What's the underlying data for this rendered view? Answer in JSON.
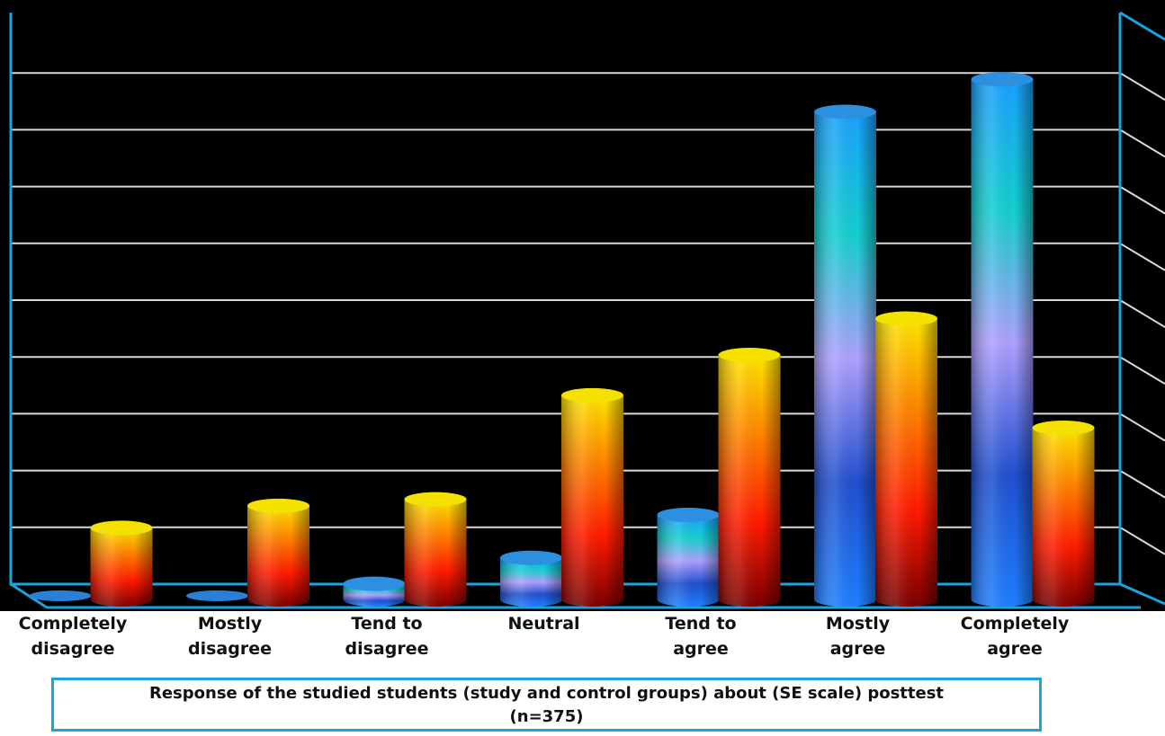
{
  "colors": {
    "background": "#000000",
    "frame": "#1aa3dc",
    "gridline": "#d9d9d9",
    "series_a_gradient": [
      "#1e7fff",
      "#2050d0",
      "#b0a0ff",
      "#14d0d0",
      "#1aa0ff"
    ],
    "series_b_gradient": [
      "#7a0000",
      "#ff1a00",
      "#ff8000",
      "#ffe600"
    ]
  },
  "chart_data": {
    "type": "bar",
    "style": "3d-cylinder",
    "categories": [
      [
        "Completely",
        "disagree"
      ],
      [
        "Mostly",
        "disagree"
      ],
      [
        "Tend to",
        "disagree"
      ],
      [
        "Neutral"
      ],
      [
        "Tend to",
        "agree"
      ],
      [
        "Mostly",
        "agree"
      ],
      [
        "Completely",
        "agree"
      ]
    ],
    "series": [
      {
        "values": [
          0,
          0,
          1.2,
          3.2,
          6.5,
          37.5,
          40
        ]
      },
      {
        "values": [
          5.5,
          7.2,
          7.7,
          15.7,
          18.8,
          21.6,
          13.2
        ]
      }
    ],
    "ylim": [
      0,
      45
    ],
    "grid": true,
    "title": "",
    "xlabel": "",
    "ylabel": ""
  },
  "caption": {
    "line1": "Response of the studied students (study and control groups) about (SE scale) posttest",
    "line2": "(n=375)"
  }
}
